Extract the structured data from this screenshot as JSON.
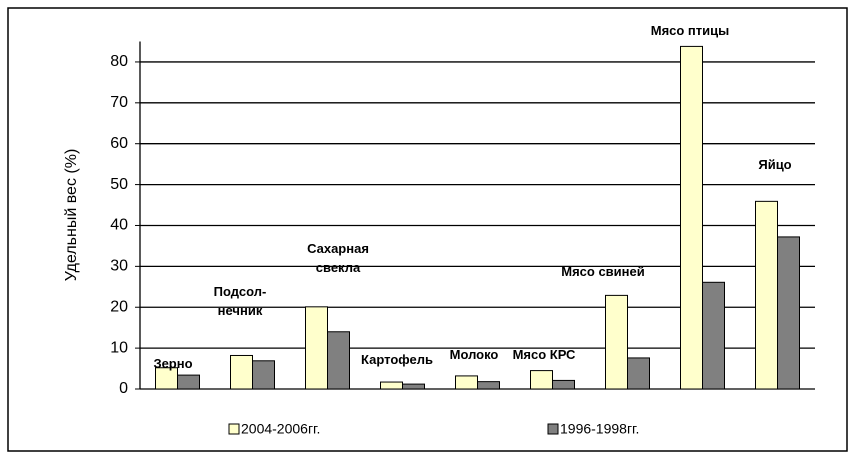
{
  "chart_data": {
    "type": "bar",
    "y_axis_label": "Удельный вес  (%)",
    "categories": [
      "Зерно",
      "Подсол-\nнечник",
      "Сахарная\nсвекла",
      "Картофель",
      "Молоко",
      "Мясо КРС",
      "Мясо свиней",
      "Мясо птицы",
      "Яйцо"
    ],
    "series": [
      {
        "name": "2004-2006гг.",
        "color": "#ffffcc",
        "values": [
          5.2,
          8.2,
          20.1,
          1.7,
          3.2,
          4.5,
          22.9,
          83.8,
          45.9
        ]
      },
      {
        "name": "1996-1998гг.",
        "color": "#808080",
        "values": [
          3.4,
          6.9,
          14.0,
          1.2,
          1.8,
          2.1,
          7.6,
          26.1,
          37.2
        ]
      }
    ],
    "ylim": [
      0,
      85
    ],
    "yticks": [
      0,
      10,
      20,
      30,
      40,
      50,
      60,
      70,
      80
    ],
    "grid": true,
    "legend": "bottom"
  }
}
